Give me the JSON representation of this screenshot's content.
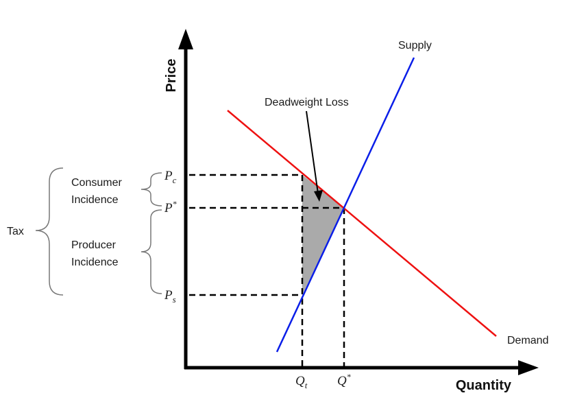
{
  "axes": {
    "x_title": "Quantity",
    "y_title": "Price"
  },
  "curves": {
    "supply_label": "Supply",
    "demand_label": "Demand",
    "supply_color": "#0a1ee8",
    "demand_color": "#ee1111",
    "dwl_fill": "#aaaaaa"
  },
  "annotations": {
    "deadweight_loss": "Deadweight Loss",
    "tax": "Tax",
    "consumer_incidence_line1": "Consumer",
    "consumer_incidence_line2": "Incidence",
    "producer_incidence_line1": "Producer",
    "producer_incidence_line2": "Incidence"
  },
  "price_labels": {
    "pc": "P",
    "pc_sub": "c",
    "pstar": "P",
    "pstar_sup": "*",
    "ps": "P",
    "ps_sub": "s"
  },
  "quantity_labels": {
    "qt": "Q",
    "qt_sub": "t",
    "qstar": "Q",
    "qstar_sup": "*"
  }
}
